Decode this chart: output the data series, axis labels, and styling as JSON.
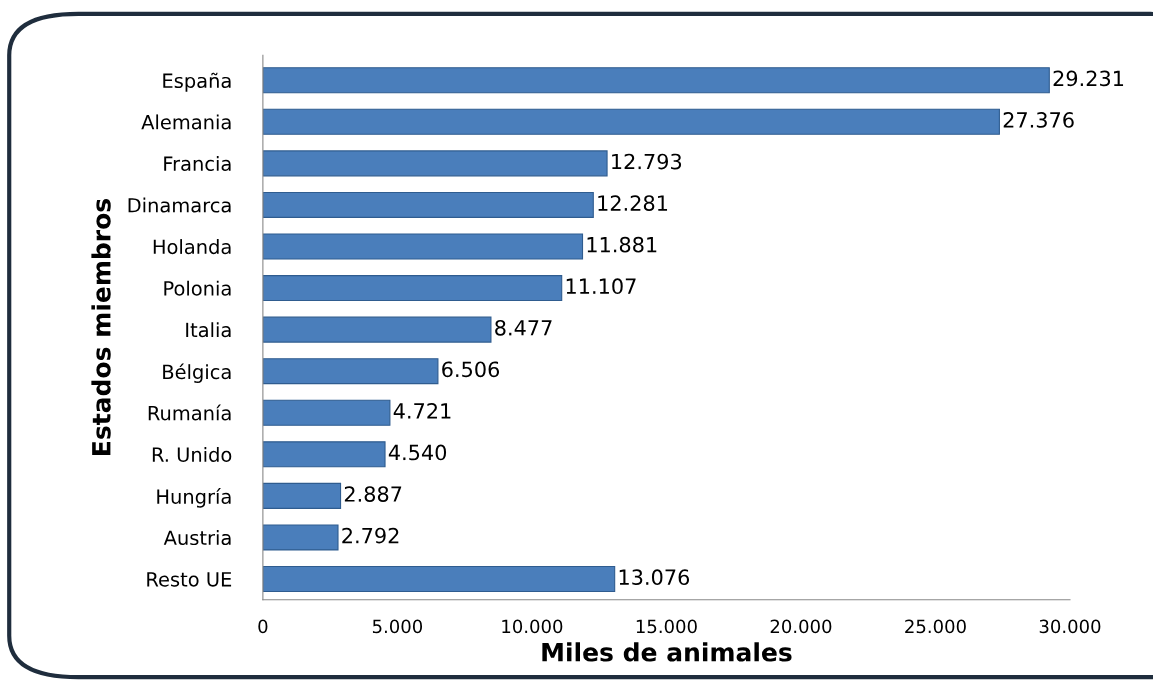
{
  "chart_data": {
    "type": "bar",
    "orientation": "horizontal",
    "xlabel": "Miles de animales",
    "ylabel": "Estados miembros",
    "categories": [
      "España",
      "Alemania",
      "Francia",
      "Dinamarca",
      "Holanda",
      "Polonia",
      "Italia",
      "Bélgica",
      "Rumanía",
      "R. Unido",
      "Hungría",
      "Austria",
      "Resto UE"
    ],
    "values": [
      29231,
      27376,
      12793,
      12281,
      11881,
      11107,
      8477,
      6506,
      4721,
      4540,
      2887,
      2792,
      13076
    ],
    "value_labels": [
      "29.231",
      "27.376",
      "12.793",
      "12.281",
      "11.881",
      "11.107",
      "8.477",
      "6.506",
      "4.721",
      "4.540",
      "2.887",
      "2.792",
      "13.076"
    ],
    "color": "#4a7ebb",
    "xlim": [
      0,
      30000
    ],
    "xticks": [
      0,
      {
        "value": 5000,
        "label": "5.000"
      },
      {
        "value": 10000,
        "label": "10.000"
      },
      {
        "value": 15000,
        "label": "15.000"
      },
      {
        "value": 20000,
        "label": "20.000"
      },
      {
        "value": 25000,
        "label": "25.000"
      },
      {
        "value": 30000,
        "label": "30.000"
      }
    ],
    "grid": false,
    "legend": false
  }
}
